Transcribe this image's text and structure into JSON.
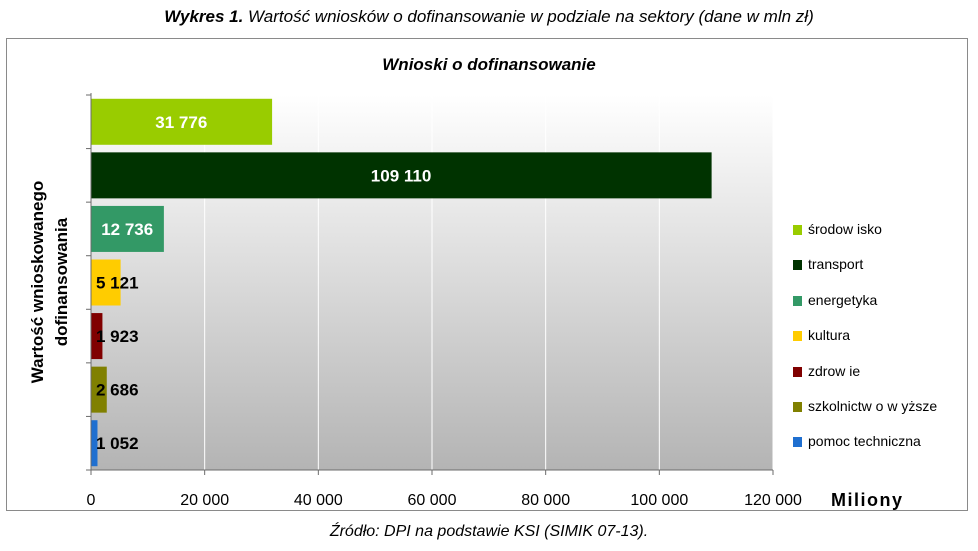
{
  "figure": {
    "caption_bold": "Wykres 1.",
    "caption_rest": " Wartość wniosków o dofinansowanie w podziale na sektory (dane w mln zł)",
    "source": "Źródło: DPI na podstawie KSI (SIMIK 07-13)."
  },
  "chart_data": {
    "type": "bar",
    "orientation": "horizontal",
    "title": "Wnioski o dofinansowanie",
    "ylabel": "Wartość wnioskowanego dofinansowania",
    "xlabel": "Miliony",
    "xlim": [
      0,
      120000
    ],
    "x_ticks": [
      0,
      20000,
      40000,
      60000,
      80000,
      100000,
      120000
    ],
    "x_tick_labels": [
      "0",
      "20 000",
      "40 000",
      "60 000",
      "80 000",
      "100 000",
      "120 000"
    ],
    "grid": "vertical",
    "legend_position": "right",
    "categories": [
      "środowisko",
      "transport",
      "energetyka",
      "kultura",
      "zdrowie",
      "szkolnictwo wyższe",
      "pomoc techniczna"
    ],
    "legend_labels": [
      "środow isko",
      "transport",
      "energetyka",
      "kultura",
      "zdrow ie",
      "szkolnictw o w yższe",
      "pomoc techniczna"
    ],
    "values": [
      31776,
      109110,
      12736,
      5121,
      1923,
      2686,
      1052
    ],
    "value_labels": [
      "31 776",
      "109 110",
      "12 736",
      "5 121",
      "1 923",
      "2 686",
      "1 052"
    ],
    "colors": [
      "#99cc00",
      "#003300",
      "#339966",
      "#ffcc00",
      "#800000",
      "#808000",
      "#1f6fd0"
    ]
  }
}
